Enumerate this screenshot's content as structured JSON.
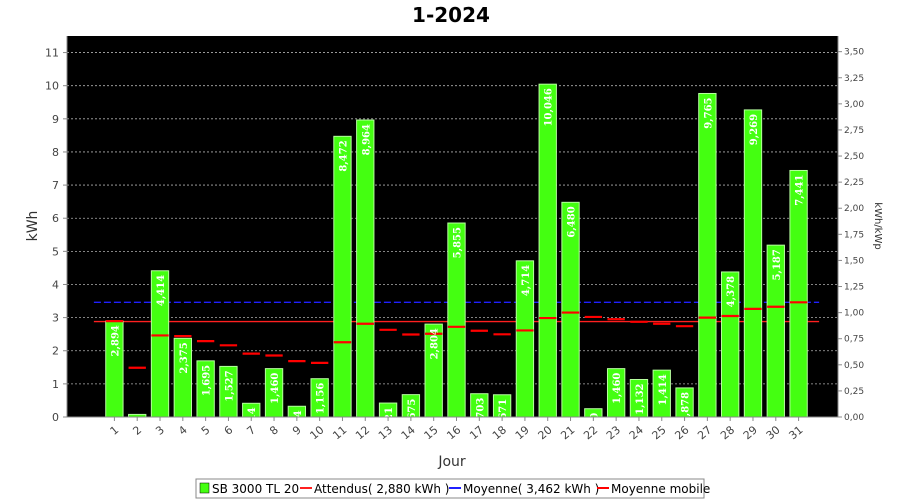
{
  "chart_data": {
    "type": "bar",
    "title": "1-2024",
    "xlabel": "Jour",
    "ylabel": "kWh",
    "y2label": "kWh/kWp",
    "ylim": [
      0,
      11.5
    ],
    "y2lim": [
      0,
      3.65
    ],
    "yticks": [
      "0",
      "1",
      "2",
      "3",
      "4",
      "5",
      "6",
      "7",
      "8",
      "9",
      "10",
      "11"
    ],
    "y2ticks": [
      "0,00",
      "0,25",
      "0,50",
      "0,75",
      "1,00",
      "1,25",
      "1,50",
      "1,75",
      "2,00",
      "2,25",
      "2,50",
      "2,75",
      "3,00",
      "3,25",
      "3,50"
    ],
    "grid": true,
    "categories": [
      "1",
      "2",
      "3",
      "4",
      "5",
      "6",
      "7",
      "8",
      "9",
      "10",
      "11",
      "12",
      "13",
      "14",
      "15",
      "16",
      "17",
      "18",
      "19",
      "20",
      "21",
      "22",
      "23",
      "24",
      "25",
      "26",
      "27",
      "28",
      "29",
      "30",
      "31"
    ],
    "series": [
      {
        "name": "SB 3000 TL 20",
        "kind": "bar",
        "color": "#44ff11",
        "values": [
          2.894,
          0.078,
          4.414,
          2.375,
          1.695,
          1.527,
          0.414,
          1.46,
          0.324,
          1.156,
          8.472,
          8.964,
          0.421,
          0.675,
          2.804,
          5.855,
          0.703,
          0.671,
          4.714,
          10.046,
          6.48,
          0.25,
          1.46,
          1.132,
          1.414,
          0.878,
          9.765,
          4.378,
          9.269,
          5.187,
          7.441
        ],
        "labels": [
          "2,894",
          "0,078",
          "4,414",
          "2,375",
          "1,695",
          "1,527",
          "0,414",
          "1,460",
          "0,324",
          "1,156",
          "8,472",
          "8,964",
          "0,421",
          "0,675",
          "2,804",
          "5,855",
          "0,703",
          "0,671",
          "4,714",
          "10,046",
          "6,480",
          "0,250",
          "1,460",
          "1,132",
          "1,414",
          "0,878",
          "9,765",
          "4,378",
          "9,269",
          "5,187",
          "7,441"
        ]
      },
      {
        "name": "Attendus( 2,880 kWh )",
        "kind": "hline",
        "color": "#ff2020",
        "value": 2.88
      },
      {
        "name": "Moyenne( 3,462 kWh )",
        "kind": "hline",
        "color": "#2020ff",
        "value": 3.462
      },
      {
        "name": "Moyenne mobile",
        "kind": "markers",
        "color": "#ff0000",
        "values": [
          2.894,
          1.486,
          2.462,
          2.44,
          2.291,
          2.164,
          1.914,
          1.857,
          1.687,
          1.634,
          2.256,
          2.815,
          2.631,
          2.491,
          2.512,
          2.722,
          2.603,
          2.496,
          2.613,
          2.986,
          3.152,
          3.02,
          2.952,
          2.873,
          2.815,
          2.741,
          2.999,
          3.048,
          3.263,
          3.327,
          3.462
        ]
      }
    ],
    "legend_position": "bottom"
  }
}
